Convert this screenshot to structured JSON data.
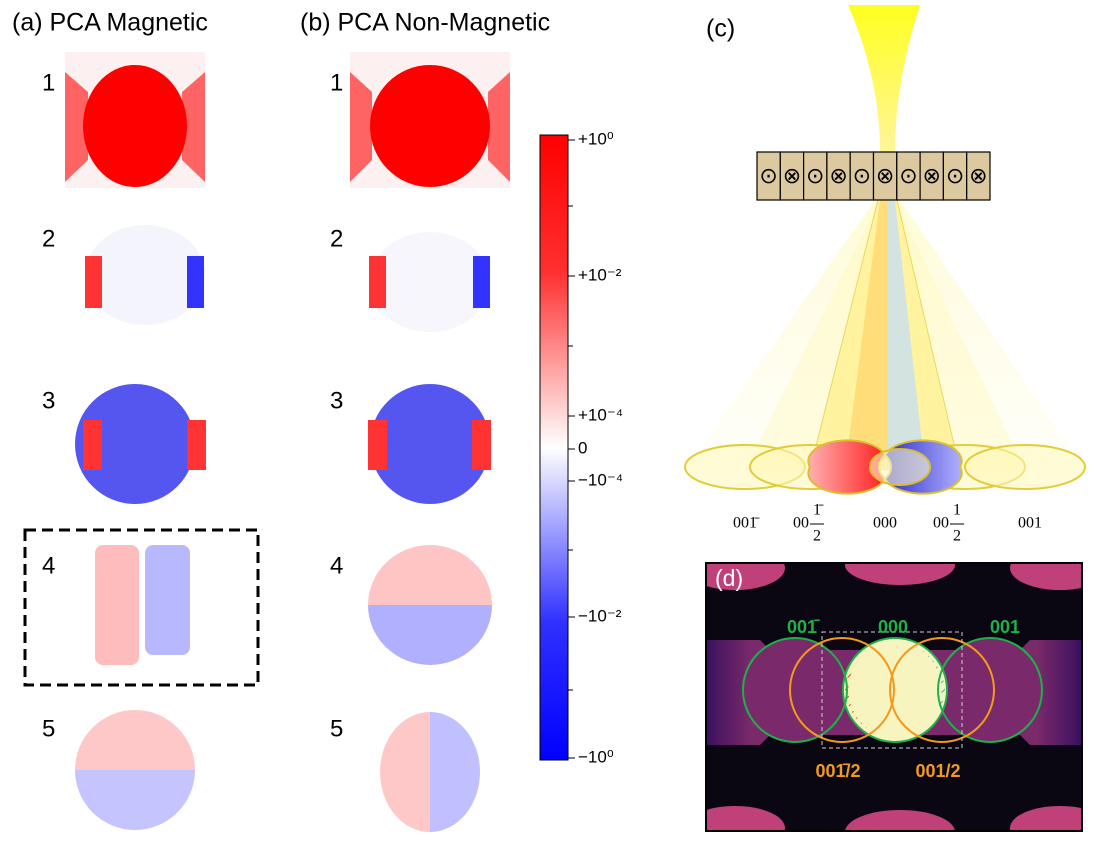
{
  "panel_a": {
    "title": "(a) PCA Magnetic",
    "rows": [
      "1",
      "2",
      "3",
      "4",
      "5"
    ]
  },
  "panel_b": {
    "title": "(b) PCA Non-Magnetic",
    "rows": [
      "1",
      "2",
      "3",
      "4",
      "5"
    ]
  },
  "colorbar": {
    "ticks": [
      "+10⁰",
      "+10⁻²",
      "+10⁻⁴",
      "0",
      "−10⁻⁴",
      "−10⁻²",
      "−10⁰"
    ]
  },
  "panel_c": {
    "label": "(c)",
    "spins": [
      "⊙",
      "⊗",
      "⊙",
      "⊗",
      "⊙",
      "⊗",
      "⊙",
      "⊗",
      "⊙",
      "⊗"
    ],
    "spots": [
      {
        "text": "001̄"
      },
      {
        "prefix": "00",
        "num": "1̄",
        "den": "2"
      },
      {
        "text": "000"
      },
      {
        "prefix": "00",
        "num": "1",
        "den": "2"
      },
      {
        "text": "001"
      }
    ]
  },
  "panel_d": {
    "label": "(d)",
    "green_labels": [
      "001̄",
      "000",
      "001"
    ],
    "orange_labels": [
      "001̄/2",
      "001/2"
    ]
  }
}
